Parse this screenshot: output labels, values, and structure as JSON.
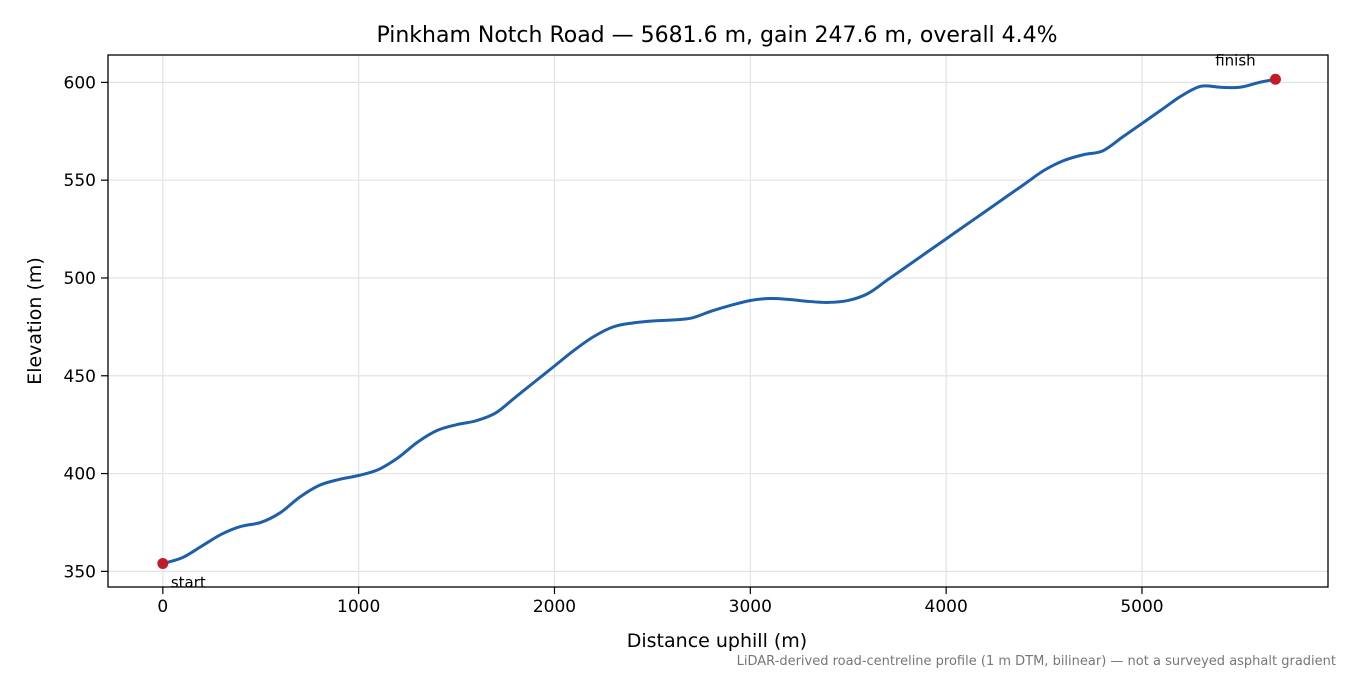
{
  "chart_data": {
    "type": "line",
    "title": "Pinkham Notch Road — 5681.6 m, gain 247.6 m, overall 4.4%",
    "xlabel": "Distance uphill (m)",
    "ylabel": "Elevation (m)",
    "xlim": [
      -280,
      5950
    ],
    "ylim": [
      342,
      614
    ],
    "x_ticks": [
      0,
      1000,
      2000,
      3000,
      4000,
      5000
    ],
    "y_ticks": [
      350,
      400,
      450,
      500,
      550,
      600
    ],
    "grid": true,
    "series": [
      {
        "color": "#1f5faa",
        "x": [
          0,
          100,
          200,
          300,
          400,
          500,
          600,
          700,
          800,
          900,
          1000,
          1100,
          1200,
          1300,
          1400,
          1500,
          1600,
          1700,
          1800,
          1900,
          2000,
          2100,
          2200,
          2300,
          2400,
          2500,
          2600,
          2700,
          2800,
          2900,
          3000,
          3100,
          3200,
          3300,
          3400,
          3500,
          3600,
          3700,
          3800,
          3900,
          4000,
          4100,
          4200,
          4300,
          4400,
          4500,
          4600,
          4700,
          4800,
          4900,
          5000,
          5100,
          5200,
          5300,
          5400,
          5500,
          5600,
          5681.6
        ],
        "y": [
          354,
          357,
          363,
          369,
          373,
          375,
          380,
          388,
          394,
          397,
          399,
          402,
          408,
          416,
          422,
          425,
          427,
          431,
          439,
          447,
          455,
          463,
          470,
          475,
          477,
          478,
          478.5,
          479.5,
          483,
          486,
          488.5,
          489.5,
          489,
          488,
          487.5,
          488.5,
          492,
          499,
          506,
          513,
          520,
          527,
          534,
          541,
          548,
          555,
          560,
          563,
          565,
          572,
          579,
          586,
          593,
          598,
          597.5,
          597.5,
          600,
          601.6
        ]
      }
    ],
    "points": [
      {
        "label": "start",
        "x": 0,
        "y": 354,
        "color": "#c21b2b"
      },
      {
        "label": "finish",
        "x": 5681.6,
        "y": 601.6,
        "color": "#c21b2b"
      }
    ],
    "footnote": "LiDAR-derived road-centreline profile (1 m DTM, bilinear) — not a surveyed asphalt gradient"
  }
}
